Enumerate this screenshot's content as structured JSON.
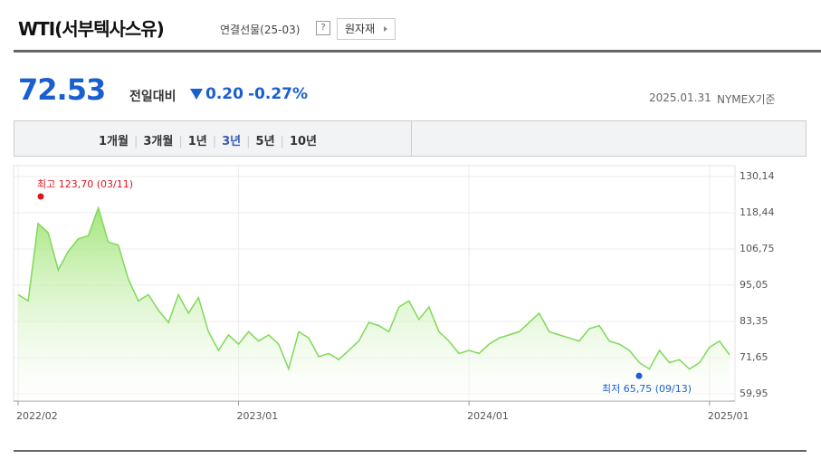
{
  "header": {
    "title": "WTI(서부텍사스유)",
    "subtitle": "연결선물(25-03)",
    "help": "?",
    "category_button": "원자재"
  },
  "quote": {
    "price": "72.53",
    "change_label": "전일대비",
    "change": "0.20",
    "change_percent": "-0.27%",
    "date": "2025.01.31",
    "basis": "NYMEX기준"
  },
  "tabs": [
    "1개월",
    "3개월",
    "1년",
    "3년",
    "5년",
    "10년"
  ],
  "selected_tab": 3,
  "chart_data": {
    "type": "area",
    "color": "#7ed957",
    "categories": [
      "2022/02",
      null,
      null,
      null,
      null,
      null,
      null,
      null,
      null,
      null,
      null,
      null,
      null,
      null,
      null,
      null,
      null,
      null,
      null,
      null,
      null,
      null,
      "2023/01",
      null,
      null,
      null,
      null,
      null,
      null,
      null,
      null,
      null,
      null,
      null,
      null,
      null,
      null,
      null,
      null,
      null,
      null,
      null,
      null,
      null,
      null,
      "2024/01",
      null,
      null,
      null,
      null,
      null,
      null,
      null,
      null,
      null,
      null,
      null,
      null,
      null,
      null,
      null,
      null,
      null,
      null,
      null,
      null,
      null,
      null,
      null,
      "2025/01",
      null,
      null
    ],
    "values": [
      92,
      90,
      115,
      112,
      100,
      106,
      110,
      111,
      120,
      109,
      108,
      97,
      90,
      92,
      87,
      83,
      92,
      86,
      91,
      80,
      74,
      79,
      76,
      80,
      77,
      79,
      76,
      68,
      80,
      78,
      72,
      73,
      71,
      74,
      77,
      83,
      82,
      80,
      88,
      90,
      84,
      88,
      80,
      77,
      73,
      74,
      73,
      76,
      78,
      79,
      80,
      83,
      86,
      80,
      79,
      78,
      77,
      81,
      82,
      77,
      76,
      74,
      70,
      68,
      74,
      70,
      71,
      68,
      70,
      75,
      77,
      72.5
    ],
    "ylim": [
      59.95,
      130.14
    ],
    "yticks": [
      {
        "value": 59.95,
        "label": "59,95"
      },
      {
        "value": 71.65,
        "label": "71,65"
      },
      {
        "value": 83.35,
        "label": "83,35"
      },
      {
        "value": 95.05,
        "label": "95,05"
      },
      {
        "value": 106.75,
        "label": "106,75"
      },
      {
        "value": 118.44,
        "label": "118,44"
      },
      {
        "value": 130.14,
        "label": "130,14"
      }
    ],
    "grid": true,
    "annotations": [
      {
        "label": "최고 123,70 (03/11)",
        "value": 123.7,
        "color": "#e0141e"
      },
      {
        "label": "최저 65,75 (09/13)",
        "value": 65.75,
        "color": "#1a5fd0"
      }
    ]
  }
}
